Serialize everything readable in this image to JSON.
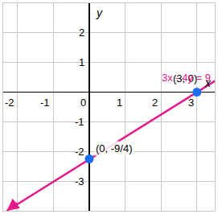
{
  "chart_data": {
    "type": "line",
    "x_label": "x",
    "y_label": "y",
    "xlim": [
      -2.4,
      3.5
    ],
    "ylim": [
      -4,
      3
    ],
    "xticks": [
      -2,
      -1,
      0,
      1,
      2,
      3
    ],
    "yticks": [
      -3,
      -2,
      -1,
      1,
      2
    ],
    "grid": true,
    "series": [
      {
        "type": "line",
        "color": "#e6198a",
        "marker": "arrow",
        "x": [
          -2.3,
          3.6
        ],
        "values": [
          -4,
          0.45
        ]
      },
      {
        "type": "scatter",
        "color": "#1a6cf0",
        "marker": "circle",
        "x": [
          3,
          0
        ],
        "values": [
          0,
          -2.25
        ],
        "value_labels": [
          "(3, 0)",
          "(0, -9/4)"
        ]
      }
    ],
    "annotations": [
      {
        "text": "3x - 4y = 9",
        "color": "#e6198a"
      }
    ]
  }
}
